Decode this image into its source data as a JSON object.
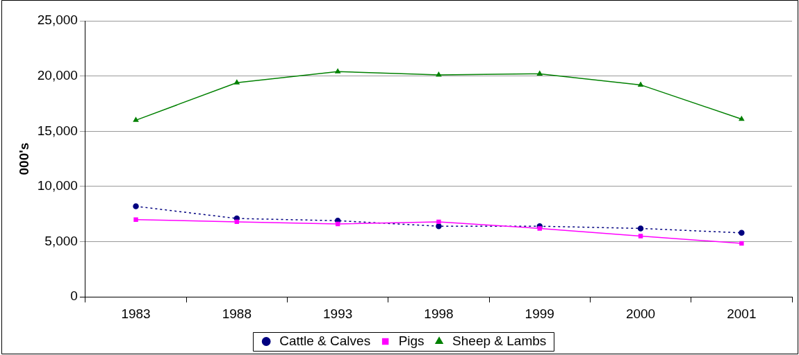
{
  "chart_data": {
    "type": "line",
    "ylabel": "000's",
    "categories": [
      "1983",
      "1988",
      "1993",
      "1998",
      "1999",
      "2000",
      "2001"
    ],
    "series": [
      {
        "name": "Cattle & Calves",
        "color": "#000080",
        "marker": "circle",
        "line_style": "dotted",
        "values": [
          8200,
          7100,
          6900,
          6400,
          6400,
          6200,
          5800
        ]
      },
      {
        "name": "Pigs",
        "color": "#ff00ff",
        "marker": "square",
        "line_style": "solid",
        "values": [
          7000,
          6800,
          6600,
          6800,
          6200,
          5500,
          4850
        ]
      },
      {
        "name": "Sheep & Lambs",
        "color": "#008000",
        "marker": "triangle",
        "line_style": "solid",
        "values": [
          16000,
          19400,
          20400,
          20100,
          20200,
          19200,
          16100
        ]
      }
    ],
    "ylim": [
      0,
      25000
    ],
    "yticks": [
      {
        "value": 0,
        "label": "0"
      },
      {
        "value": 5000,
        "label": "5,000"
      },
      {
        "value": 10000,
        "label": "10,000"
      },
      {
        "value": 15000,
        "label": "15,000"
      },
      {
        "value": 20000,
        "label": "20,000"
      },
      {
        "value": 25000,
        "label": "25,000"
      }
    ],
    "grid": "y",
    "legend": "bottom"
  }
}
